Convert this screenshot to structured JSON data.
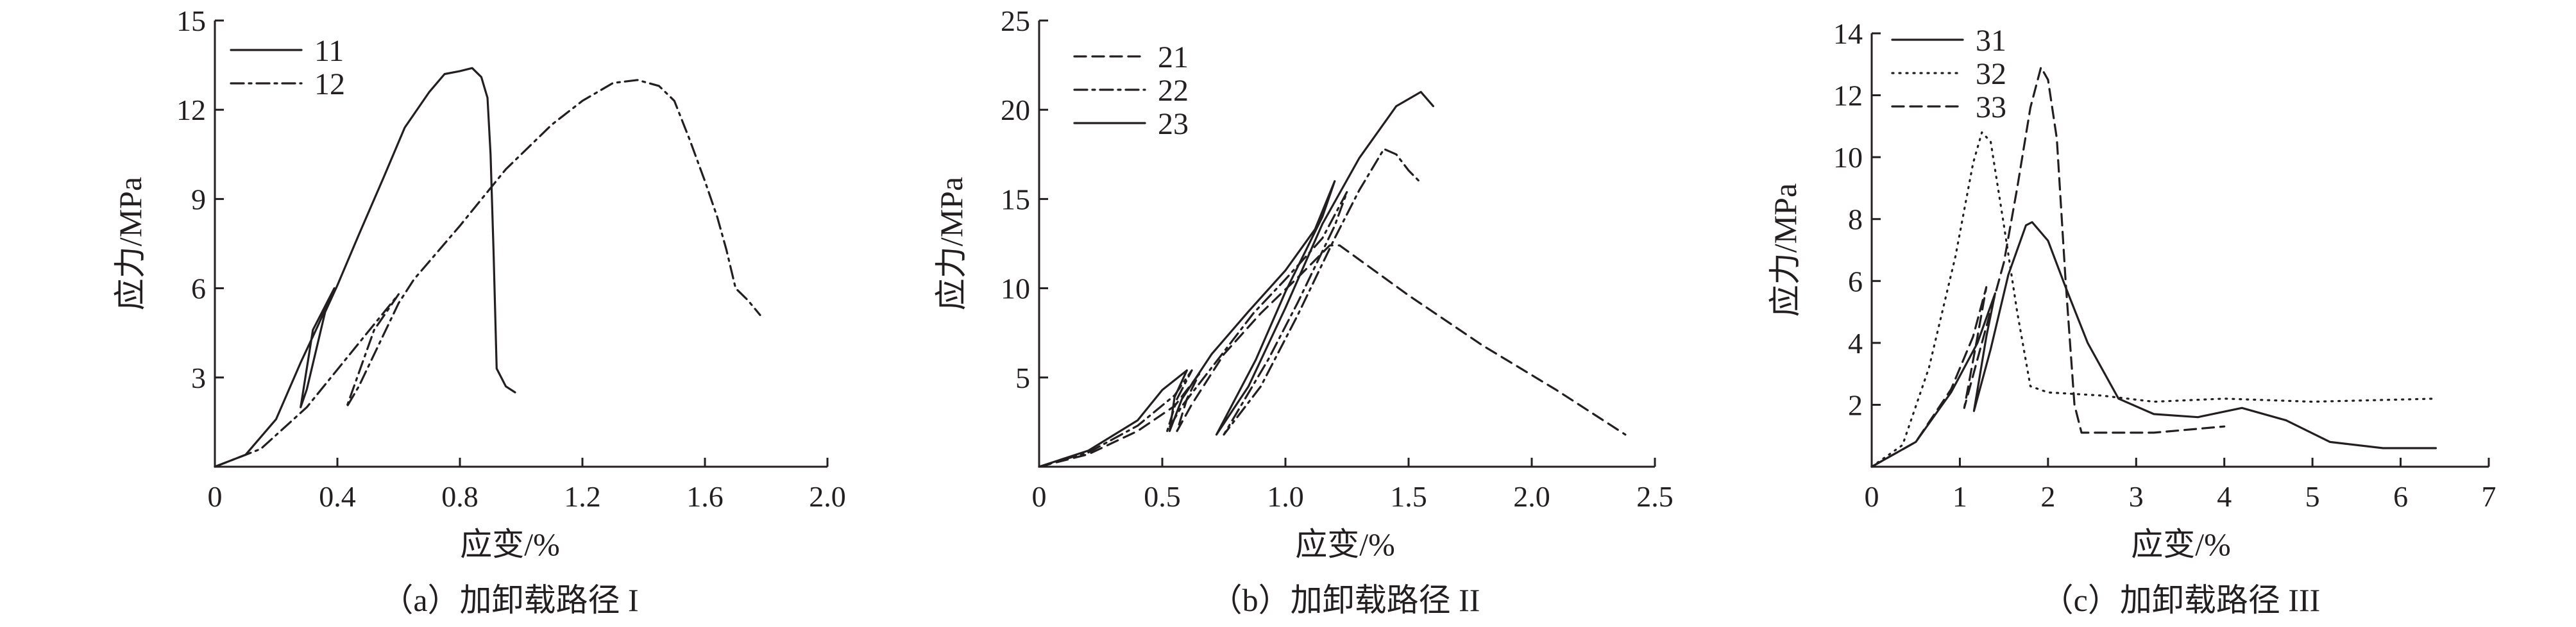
{
  "figure": {
    "style": {
      "ink_color": "#231f20",
      "background": "#ffffff"
    }
  },
  "chart_data": [
    {
      "type": "line",
      "caption": "（a）加卸载路径 I",
      "xlabel": "应变/%",
      "ylabel": "应力/MPa",
      "xlim": [
        0,
        2.0
      ],
      "ylim": [
        0,
        15
      ],
      "xticks": [
        "0",
        "0.4",
        "0.8",
        "1.2",
        "1.6",
        "2.0"
      ],
      "yticks": [
        "3",
        "6",
        "9",
        "12",
        "15"
      ],
      "grid": false,
      "legend_position": "top-left",
      "series": [
        {
          "name": "11",
          "dash": "solid",
          "points": [
            [
              0,
              0
            ],
            [
              0.1,
              0.4
            ],
            [
              0.2,
              1.6
            ],
            [
              0.28,
              3.5
            ],
            [
              0.33,
              4.6
            ],
            [
              0.37,
              5.5
            ],
            [
              0.39,
              6.0
            ],
            [
              0.32,
              4.6
            ],
            [
              0.28,
              2.0
            ],
            [
              0.3,
              2.6
            ],
            [
              0.36,
              5.2
            ],
            [
              0.4,
              6.1
            ],
            [
              0.47,
              7.8
            ],
            [
              0.55,
              9.7
            ],
            [
              0.62,
              11.4
            ],
            [
              0.7,
              12.6
            ],
            [
              0.75,
              13.2
            ],
            [
              0.8,
              13.3
            ],
            [
              0.84,
              13.4
            ],
            [
              0.87,
              13.1
            ],
            [
              0.89,
              12.4
            ],
            [
              0.9,
              10.5
            ],
            [
              0.91,
              7.2
            ],
            [
              0.92,
              3.3
            ],
            [
              0.95,
              2.7
            ],
            [
              0.98,
              2.5
            ]
          ]
        },
        {
          "name": "12",
          "dash": "dashdot",
          "points": [
            [
              0,
              0
            ],
            [
              0.15,
              0.6
            ],
            [
              0.3,
              2.0
            ],
            [
              0.45,
              3.9
            ],
            [
              0.6,
              5.8
            ],
            [
              0.52,
              4.6
            ],
            [
              0.43,
              2.0
            ],
            [
              0.47,
              2.7
            ],
            [
              0.6,
              5.5
            ],
            [
              0.65,
              6.3
            ],
            [
              0.8,
              8.1
            ],
            [
              0.95,
              10.0
            ],
            [
              1.1,
              11.5
            ],
            [
              1.2,
              12.3
            ],
            [
              1.3,
              12.9
            ],
            [
              1.38,
              13.0
            ],
            [
              1.45,
              12.8
            ],
            [
              1.5,
              12.3
            ],
            [
              1.55,
              11.0
            ],
            [
              1.6,
              9.6
            ],
            [
              1.64,
              8.4
            ],
            [
              1.67,
              7.3
            ],
            [
              1.7,
              6.0
            ],
            [
              1.74,
              5.6
            ],
            [
              1.78,
              5.1
            ]
          ]
        }
      ]
    },
    {
      "type": "line",
      "caption": "（b）加卸载路径 II",
      "xlabel": "应变/%",
      "ylabel": "应力/MPa",
      "xlim": [
        0,
        2.5
      ],
      "ylim": [
        0,
        25
      ],
      "xticks": [
        "0",
        "0.5",
        "1.0",
        "1.5",
        "2.0",
        "2.5"
      ],
      "yticks": [
        "5",
        "10",
        "15",
        "20",
        "25"
      ],
      "grid": false,
      "legend_position": "top-left",
      "series": [
        {
          "name": "21",
          "dash": "dashed",
          "points": [
            [
              0,
              0
            ],
            [
              0.2,
              0.7
            ],
            [
              0.4,
              2.0
            ],
            [
              0.55,
              3.4
            ],
            [
              0.65,
              5.2
            ],
            [
              0.6,
              3.8
            ],
            [
              0.56,
              2.0
            ],
            [
              0.62,
              3.5
            ],
            [
              0.75,
              6.3
            ],
            [
              0.9,
              8.6
            ],
            [
              1.05,
              10.6
            ],
            [
              1.18,
              12.4
            ],
            [
              1.22,
              12.4
            ],
            [
              1.5,
              9.6
            ],
            [
              1.8,
              6.8
            ],
            [
              2.1,
              4.3
            ],
            [
              2.38,
              1.8
            ]
          ]
        },
        {
          "name": "22",
          "dash": "dashdot",
          "points": [
            [
              0,
              0
            ],
            [
              0.2,
              0.8
            ],
            [
              0.4,
              2.3
            ],
            [
              0.55,
              4.0
            ],
            [
              0.62,
              5.4
            ],
            [
              0.56,
              3.8
            ],
            [
              0.52,
              2.0
            ],
            [
              0.58,
              3.4
            ],
            [
              0.72,
              5.9
            ],
            [
              0.87,
              8.6
            ],
            [
              1.0,
              10.5
            ],
            [
              1.15,
              12.8
            ],
            [
              1.25,
              15.4
            ],
            [
              1.2,
              13.5
            ],
            [
              1.05,
              9.2
            ],
            [
              0.93,
              6.0
            ],
            [
              0.75,
              1.8
            ],
            [
              0.9,
              4.5
            ],
            [
              1.05,
              8.5
            ],
            [
              1.2,
              12.8
            ],
            [
              1.3,
              15.5
            ],
            [
              1.4,
              17.8
            ],
            [
              1.45,
              17.5
            ],
            [
              1.5,
              16.6
            ],
            [
              1.55,
              15.9
            ]
          ]
        },
        {
          "name": "23",
          "dash": "solid",
          "points": [
            [
              0,
              0
            ],
            [
              0.2,
              0.9
            ],
            [
              0.4,
              2.6
            ],
            [
              0.5,
              4.3
            ],
            [
              0.6,
              5.4
            ],
            [
              0.55,
              3.9
            ],
            [
              0.53,
              2.0
            ],
            [
              0.58,
              3.8
            ],
            [
              0.7,
              6.3
            ],
            [
              0.85,
              8.7
            ],
            [
              1.0,
              11.0
            ],
            [
              1.12,
              13.3
            ],
            [
              1.2,
              16.0
            ],
            [
              1.15,
              14.0
            ],
            [
              1.0,
              9.8
            ],
            [
              0.88,
              6.0
            ],
            [
              0.72,
              1.8
            ],
            [
              0.85,
              4.5
            ],
            [
              1.0,
              8.9
            ],
            [
              1.15,
              13.6
            ],
            [
              1.3,
              17.3
            ],
            [
              1.45,
              20.2
            ],
            [
              1.55,
              21.0
            ],
            [
              1.6,
              20.2
            ]
          ]
        }
      ]
    },
    {
      "type": "line",
      "caption": "（c）加卸载路径 III",
      "xlabel": "应变/%",
      "ylabel": "应力/MPa",
      "xlim": [
        0,
        7
      ],
      "ylim": [
        0,
        14
      ],
      "xticks": [
        "0",
        "1",
        "2",
        "3",
        "4",
        "5",
        "6",
        "7"
      ],
      "yticks": [
        "2",
        "4",
        "6",
        "8",
        "10",
        "12",
        "14"
      ],
      "grid": false,
      "legend_position": "top-left",
      "series": [
        {
          "name": "31",
          "dash": "solid",
          "points": [
            [
              0,
              0
            ],
            [
              0.5,
              0.8
            ],
            [
              0.9,
              2.4
            ],
            [
              1.2,
              4.0
            ],
            [
              1.4,
              5.6
            ],
            [
              1.3,
              4.2
            ],
            [
              1.16,
              1.8
            ],
            [
              1.35,
              3.8
            ],
            [
              1.55,
              6.2
            ],
            [
              1.75,
              7.8
            ],
            [
              1.82,
              7.9
            ],
            [
              2.0,
              7.3
            ],
            [
              2.2,
              5.8
            ],
            [
              2.45,
              4.0
            ],
            [
              2.8,
              2.2
            ],
            [
              3.2,
              1.7
            ],
            [
              3.7,
              1.6
            ],
            [
              4.2,
              1.9
            ],
            [
              4.7,
              1.5
            ],
            [
              5.2,
              0.8
            ],
            [
              5.8,
              0.6
            ],
            [
              6.4,
              0.6
            ]
          ]
        },
        {
          "name": "32",
          "dash": "dotted",
          "points": [
            [
              0,
              0
            ],
            [
              0.35,
              0.7
            ],
            [
              0.65,
              3.2
            ],
            [
              0.95,
              6.8
            ],
            [
              1.15,
              9.8
            ],
            [
              1.25,
              10.8
            ],
            [
              1.35,
              10.5
            ],
            [
              1.5,
              7.8
            ],
            [
              1.65,
              5.0
            ],
            [
              1.8,
              2.6
            ],
            [
              2.0,
              2.4
            ],
            [
              2.6,
              2.3
            ],
            [
              3.2,
              2.1
            ],
            [
              4.0,
              2.2
            ],
            [
              5.0,
              2.1
            ],
            [
              6.4,
              2.2
            ]
          ]
        },
        {
          "name": "33",
          "dash": "dashed",
          "points": [
            [
              0,
              0
            ],
            [
              0.5,
              0.8
            ],
            [
              0.9,
              2.5
            ],
            [
              1.15,
              4.2
            ],
            [
              1.3,
              5.8
            ],
            [
              1.2,
              4.2
            ],
            [
              1.05,
              1.9
            ],
            [
              1.25,
              4.0
            ],
            [
              1.5,
              6.6
            ],
            [
              1.65,
              9.0
            ],
            [
              1.8,
              11.6
            ],
            [
              1.92,
              12.9
            ],
            [
              2.0,
              12.5
            ],
            [
              2.1,
              10.6
            ],
            [
              2.2,
              6.0
            ],
            [
              2.3,
              2.0
            ],
            [
              2.38,
              1.1
            ],
            [
              3.2,
              1.1
            ],
            [
              4.0,
              1.3
            ]
          ]
        }
      ]
    }
  ]
}
